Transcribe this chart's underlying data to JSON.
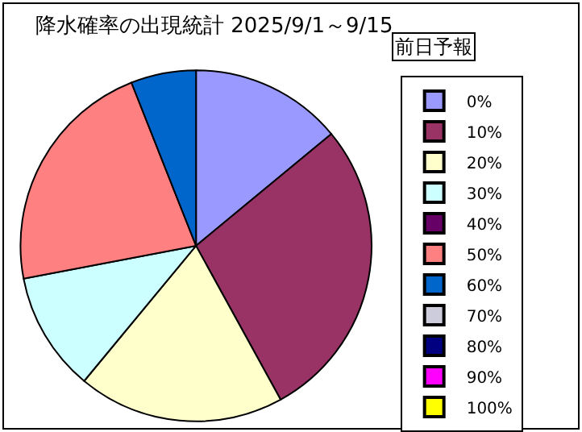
{
  "chart_data": {
    "type": "pie",
    "title": "降水確率の出現統計 2025/9/1～9/15",
    "legend_title": "前日予報",
    "legend": "right",
    "categories": [
      "0%",
      "10%",
      "20%",
      "30%",
      "40%",
      "50%",
      "60%",
      "70%",
      "80%",
      "90%",
      "100%"
    ],
    "values": [
      14,
      28,
      19,
      11,
      0,
      22,
      6,
      0,
      0,
      0,
      0
    ],
    "colors": [
      "#9999ff",
      "#993366",
      "#ffffcc",
      "#ccffff",
      "#660066",
      "#ff8080",
      "#0066cc",
      "#ccccdd",
      "#000080",
      "#ff00ff",
      "#ffff00"
    ]
  }
}
